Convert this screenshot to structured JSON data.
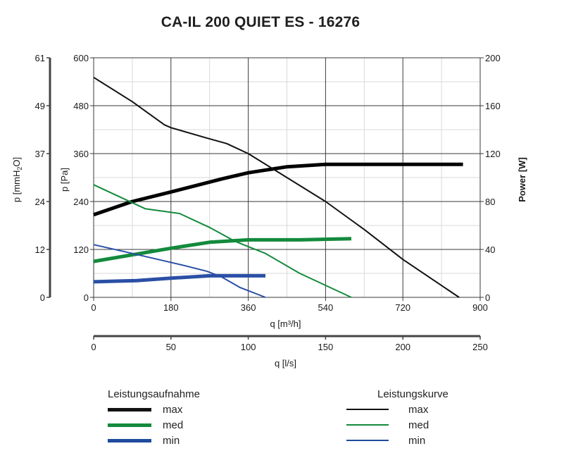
{
  "title": "CA-IL 200 QUIET ES - 16276",
  "axes": {
    "left_outer": {
      "label": "p [mmH2O]",
      "ticks": [
        "0",
        "12",
        "24",
        "37",
        "49",
        "61"
      ]
    },
    "left_inner": {
      "label": "p [Pa]",
      "ticks": [
        "0",
        "120",
        "240",
        "360",
        "480",
        "600"
      ]
    },
    "right": {
      "label": "Power [W]",
      "ticks": [
        "0",
        "40",
        "80",
        "120",
        "160",
        "200"
      ]
    },
    "bottom": {
      "label": "q [m³/h]",
      "ticks": [
        "0",
        "180",
        "360",
        "540",
        "720",
        "900"
      ]
    },
    "bottom2": {
      "label": "q [l/s]",
      "ticks": [
        "0",
        "50",
        "100",
        "150",
        "200",
        "250"
      ]
    }
  },
  "legend_power": {
    "title": "Leistungsaufnahme",
    "items": [
      {
        "label": "max",
        "color": "#111111"
      },
      {
        "label": "med",
        "color": "#138a3c"
      },
      {
        "label": "min",
        "color": "#1f4a9c"
      }
    ]
  },
  "legend_curve": {
    "title": "Leistungskurve",
    "items": [
      {
        "label": "max",
        "color": "#111111"
      },
      {
        "label": "med",
        "color": "#138a3c"
      },
      {
        "label": "min",
        "color": "#1f4a9c"
      }
    ]
  },
  "chart_data": {
    "type": "line",
    "title": "CA-IL 200 QUIET ES - 16276",
    "xlabel": "q [m³/h]",
    "xlabel_secondary": "q [l/s]",
    "ylabel": "p [Pa]",
    "ylabel_secondary_left": "p [mmH2O]",
    "ylabel_right": "Power [W]",
    "xlim": [
      0,
      900
    ],
    "ylim": [
      0,
      600
    ],
    "ylim_right": [
      0,
      200
    ],
    "x_ticks": [
      0,
      180,
      360,
      540,
      720,
      900
    ],
    "x2_ticks": [
      0,
      50,
      100,
      150,
      200,
      250
    ],
    "y_ticks": [
      0,
      120,
      240,
      360,
      480,
      600
    ],
    "y_mmH2O_ticks": [
      0,
      12,
      24,
      37,
      49,
      61
    ],
    "y_right_ticks": [
      0,
      40,
      80,
      120,
      160,
      200
    ],
    "grid": true,
    "legend_position": "bottom",
    "series": [
      {
        "name": "Leistungskurve max",
        "axis": "left",
        "color": "#111111",
        "width": 2,
        "x": [
          0,
          90,
          165,
          180,
          260,
          310,
          360,
          450,
          540,
          630,
          720,
          851
        ],
        "y": [
          551,
          490,
          432,
          425,
          400,
          385,
          360,
          300,
          240,
          170,
          95,
          0
        ]
      },
      {
        "name": "Leistungskurve med",
        "axis": "left",
        "color": "#138a3c",
        "width": 2,
        "x": [
          0,
          120,
          200,
          270,
          330,
          400,
          480,
          600
        ],
        "y": [
          282,
          222,
          210,
          175,
          140,
          110,
          60,
          0
        ]
      },
      {
        "name": "Leistungskurve min",
        "axis": "left",
        "color": "#2a4fa6",
        "width": 2,
        "x": [
          0,
          90,
          150,
          210,
          265,
          300,
          340,
          400
        ],
        "y": [
          132,
          110,
          95,
          80,
          65,
          50,
          25,
          0
        ]
      },
      {
        "name": "Leistungsaufnahme max",
        "axis": "right",
        "color": "#000000",
        "width": 5,
        "x": [
          0,
          90,
          180,
          300,
          360,
          450,
          540,
          860
        ],
        "y": [
          69,
          80,
          88,
          99,
          104,
          109,
          111,
          111
        ]
      },
      {
        "name": "Leistungsaufnahme med",
        "axis": "right",
        "color": "#138a3c",
        "width": 5,
        "x": [
          0,
          180,
          270,
          360,
          480,
          600
        ],
        "y": [
          30,
          41,
          46,
          48,
          48,
          49
        ]
      },
      {
        "name": "Leistungsaufnahme min",
        "axis": "right",
        "color": "#2a4fa6",
        "width": 5,
        "x": [
          0,
          100,
          180,
          270,
          400
        ],
        "y": [
          13,
          14,
          16,
          18,
          18
        ]
      }
    ]
  }
}
